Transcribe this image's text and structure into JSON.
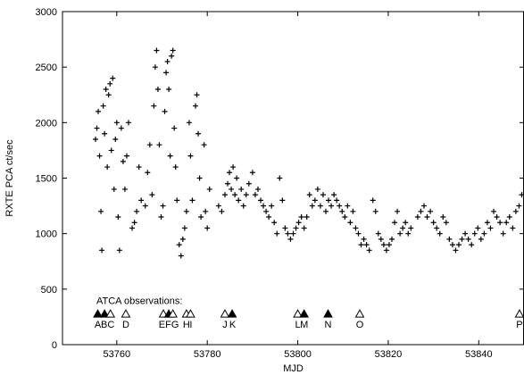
{
  "chart_data": {
    "type": "scatter",
    "title": "",
    "xlabel": "MJD",
    "ylabel": "RXTE PCA ct/sec",
    "xlim": [
      53748,
      53850
    ],
    "ylim": [
      0,
      3000
    ],
    "xticks": [
      53760,
      53780,
      53800,
      53820,
      53840
    ],
    "yticks": [
      0,
      500,
      1000,
      1500,
      2000,
      2500,
      3000
    ],
    "grid": false,
    "marker": "+",
    "series": [
      {
        "points": [
          [
            53755.3,
            1850
          ],
          [
            53755.6,
            1950
          ],
          [
            53755.9,
            2100
          ],
          [
            53756.2,
            1700
          ],
          [
            53756.5,
            1200
          ],
          [
            53756.7,
            850
          ],
          [
            53757.0,
            2150
          ],
          [
            53757.3,
            1900
          ],
          [
            53757.6,
            2300
          ],
          [
            53757.9,
            1600
          ],
          [
            53758.2,
            2250
          ],
          [
            53758.5,
            2350
          ],
          [
            53758.8,
            1750
          ],
          [
            53759.1,
            2400
          ],
          [
            53759.4,
            1400
          ],
          [
            53759.7,
            1850
          ],
          [
            53760.0,
            2000
          ],
          [
            53760.3,
            1150
          ],
          [
            53760.6,
            850
          ],
          [
            53761.0,
            1950
          ],
          [
            53761.4,
            1650
          ],
          [
            53761.8,
            1400
          ],
          [
            53762.2,
            1700
          ],
          [
            53762.6,
            2000
          ],
          [
            53763.4,
            1050
          ],
          [
            53763.9,
            1100
          ],
          [
            53764.4,
            1200
          ],
          [
            53764.9,
            1600
          ],
          [
            53765.4,
            1300
          ],
          [
            53766.3,
            1250
          ],
          [
            53766.8,
            1550
          ],
          [
            53767.3,
            1800
          ],
          [
            53767.8,
            1350
          ],
          [
            53768.2,
            2150
          ],
          [
            53768.5,
            2500
          ],
          [
            53768.8,
            2650
          ],
          [
            53769.1,
            2300
          ],
          [
            53769.4,
            1800
          ],
          [
            53769.8,
            1150
          ],
          [
            53770.2,
            1250
          ],
          [
            53770.6,
            2100
          ],
          [
            53770.9,
            2450
          ],
          [
            53771.2,
            2550
          ],
          [
            53771.5,
            2300
          ],
          [
            53771.8,
            1700
          ],
          [
            53772.1,
            2600
          ],
          [
            53772.4,
            2650
          ],
          [
            53772.7,
            1950
          ],
          [
            53773.0,
            1600
          ],
          [
            53773.3,
            1300
          ],
          [
            53773.8,
            900
          ],
          [
            53774.2,
            800
          ],
          [
            53774.6,
            950
          ],
          [
            53775.0,
            1050
          ],
          [
            53775.4,
            1200
          ],
          [
            53776.0,
            2000
          ],
          [
            53776.3,
            1700
          ],
          [
            53776.7,
            1300
          ],
          [
            53777.4,
            2150
          ],
          [
            53777.7,
            2250
          ],
          [
            53778.0,
            1900
          ],
          [
            53778.3,
            1500
          ],
          [
            53778.6,
            1150
          ],
          [
            53779.3,
            1800
          ],
          [
            53779.6,
            1200
          ],
          [
            53780.0,
            1050
          ],
          [
            53780.5,
            1400
          ],
          [
            53782.5,
            1250
          ],
          [
            53783.2,
            1200
          ],
          [
            53783.9,
            1350
          ],
          [
            53784.5,
            1450
          ],
          [
            53784.9,
            1550
          ],
          [
            53785.3,
            1400
          ],
          [
            53785.7,
            1600
          ],
          [
            53786.1,
            1350
          ],
          [
            53786.5,
            1500
          ],
          [
            53786.9,
            1300
          ],
          [
            53787.5,
            1400
          ],
          [
            53788.0,
            1250
          ],
          [
            53788.6,
            1350
          ],
          [
            53789.2,
            1450
          ],
          [
            53790.0,
            1550
          ],
          [
            53790.6,
            1350
          ],
          [
            53791.2,
            1400
          ],
          [
            53791.8,
            1300
          ],
          [
            53792.4,
            1250
          ],
          [
            53793.0,
            1200
          ],
          [
            53793.6,
            1150
          ],
          [
            53794.2,
            1250
          ],
          [
            53794.8,
            1100
          ],
          [
            53795.4,
            1000
          ],
          [
            53796.0,
            1500
          ],
          [
            53796.6,
            1300
          ],
          [
            53797.2,
            1050
          ],
          [
            53797.8,
            1000
          ],
          [
            53798.4,
            950
          ],
          [
            53799.0,
            1000
          ],
          [
            53799.6,
            1050
          ],
          [
            53800.2,
            1100
          ],
          [
            53800.8,
            1150
          ],
          [
            53801.4,
            1050
          ],
          [
            53802.0,
            1150
          ],
          [
            53802.6,
            1350
          ],
          [
            53803.2,
            1250
          ],
          [
            53803.8,
            1300
          ],
          [
            53804.4,
            1400
          ],
          [
            53805.0,
            1250
          ],
          [
            53805.6,
            1350
          ],
          [
            53806.2,
            1200
          ],
          [
            53806.8,
            1300
          ],
          [
            53807.4,
            1250
          ],
          [
            53808.0,
            1350
          ],
          [
            53808.6,
            1300
          ],
          [
            53809.2,
            1250
          ],
          [
            53809.8,
            1200
          ],
          [
            53810.4,
            1150
          ],
          [
            53811.0,
            1250
          ],
          [
            53811.6,
            1100
          ],
          [
            53812.2,
            1200
          ],
          [
            53812.8,
            1050
          ],
          [
            53813.4,
            1000
          ],
          [
            53814.0,
            900
          ],
          [
            53814.6,
            950
          ],
          [
            53815.2,
            900
          ],
          [
            53815.8,
            850
          ],
          [
            53816.6,
            1300
          ],
          [
            53817.2,
            1200
          ],
          [
            53817.8,
            1000
          ],
          [
            53818.4,
            950
          ],
          [
            53819.0,
            900
          ],
          [
            53819.6,
            850
          ],
          [
            53820.2,
            900
          ],
          [
            53820.8,
            950
          ],
          [
            53821.4,
            1100
          ],
          [
            53822.0,
            1200
          ],
          [
            53822.6,
            1000
          ],
          [
            53823.2,
            1050
          ],
          [
            53823.8,
            1100
          ],
          [
            53824.4,
            1000
          ],
          [
            53825.0,
            1050
          ],
          [
            53826.5,
            1150
          ],
          [
            53827.2,
            1200
          ],
          [
            53827.9,
            1250
          ],
          [
            53828.6,
            1150
          ],
          [
            53829.3,
            1200
          ],
          [
            53830.0,
            1100
          ],
          [
            53830.7,
            1050
          ],
          [
            53831.4,
            1000
          ],
          [
            53832.1,
            1150
          ],
          [
            53832.8,
            1100
          ],
          [
            53833.5,
            950
          ],
          [
            53834.2,
            900
          ],
          [
            53834.9,
            850
          ],
          [
            53835.6,
            900
          ],
          [
            53836.3,
            950
          ],
          [
            53837.0,
            1000
          ],
          [
            53837.7,
            950
          ],
          [
            53838.4,
            900
          ],
          [
            53839.1,
            1000
          ],
          [
            53839.8,
            1050
          ],
          [
            53840.5,
            950
          ],
          [
            53841.2,
            1000
          ],
          [
            53841.9,
            1100
          ],
          [
            53842.6,
            1050
          ],
          [
            53843.3,
            1200
          ],
          [
            53844.0,
            1150
          ],
          [
            53844.7,
            1100
          ],
          [
            53845.4,
            1000
          ],
          [
            53846.1,
            1100
          ],
          [
            53846.8,
            1150
          ],
          [
            53847.5,
            1050
          ],
          [
            53848.2,
            1200
          ],
          [
            53848.9,
            1250
          ],
          [
            53849.5,
            1350
          ]
        ]
      }
    ],
    "annotations": {
      "caption": "ATCA observations:",
      "caption_value": 400,
      "marker_value": 280,
      "label_value": 185,
      "observations": [
        {
          "mjd": 53755.8,
          "filled": true
        },
        {
          "mjd": 53757.3,
          "filled": true
        },
        {
          "mjd": 53758.6,
          "filled": false
        },
        {
          "mjd": 53762.0,
          "filled": false
        },
        {
          "mjd": 53770.3,
          "filled": false
        },
        {
          "mjd": 53771.5,
          "filled": true
        },
        {
          "mjd": 53772.4,
          "filled": false
        },
        {
          "mjd": 53775.4,
          "filled": false
        },
        {
          "mjd": 53776.3,
          "filled": false
        },
        {
          "mjd": 53783.9,
          "filled": false
        },
        {
          "mjd": 53785.5,
          "filled": true
        },
        {
          "mjd": 53800.0,
          "filled": false
        },
        {
          "mjd": 53801.4,
          "filled": true
        },
        {
          "mjd": 53806.7,
          "filled": true
        },
        {
          "mjd": 53813.7,
          "filled": false
        },
        {
          "mjd": 53849.0,
          "filled": false
        }
      ],
      "labels": [
        {
          "text": "A",
          "mjd": 53755.8
        },
        {
          "text": "BC",
          "mjd": 53758.0
        },
        {
          "text": "D",
          "mjd": 53762.0
        },
        {
          "text": "EFG",
          "mjd": 53771.5
        },
        {
          "text": "H",
          "mjd": 53775.4
        },
        {
          "text": "I",
          "mjd": 53776.4
        },
        {
          "text": "J",
          "mjd": 53783.9
        },
        {
          "text": "K",
          "mjd": 53785.6
        },
        {
          "text": "L",
          "mjd": 53800.0
        },
        {
          "text": "M",
          "mjd": 53801.4
        },
        {
          "text": "N",
          "mjd": 53806.7
        },
        {
          "text": "O",
          "mjd": 53813.7
        },
        {
          "text": "P",
          "mjd": 53849.0
        }
      ]
    }
  }
}
